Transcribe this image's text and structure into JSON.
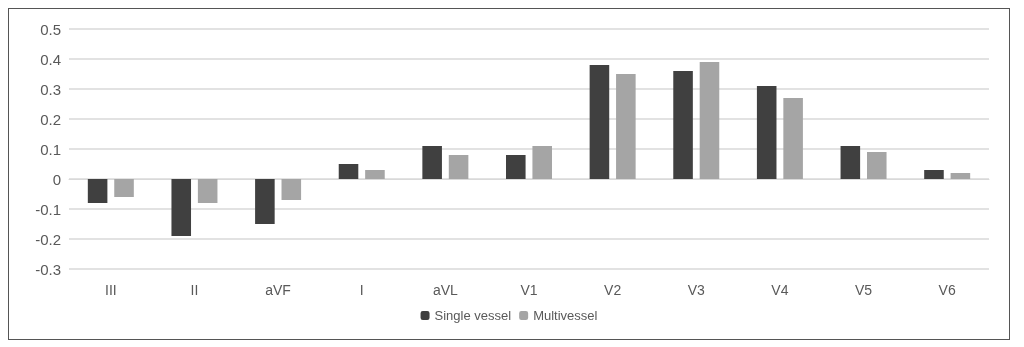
{
  "chart_data": {
    "type": "bar",
    "categories": [
      "III",
      "II",
      "aVF",
      "I",
      "aVL",
      "V1",
      "V2",
      "V3",
      "V4",
      "V5",
      "V6"
    ],
    "series": [
      {
        "name": "Single vessel",
        "color": "#404040",
        "values": [
          -0.08,
          -0.19,
          -0.15,
          0.05,
          0.11,
          0.08,
          0.38,
          0.36,
          0.31,
          0.11,
          0.03
        ]
      },
      {
        "name": "Multivessel",
        "color": "#a5a5a5",
        "values": [
          -0.06,
          -0.08,
          -0.07,
          0.03,
          0.08,
          0.11,
          0.35,
          0.39,
          0.27,
          0.09,
          0.02
        ]
      }
    ],
    "ylim": [
      -0.3,
      0.5
    ],
    "yticks": [
      -0.3,
      -0.2,
      -0.1,
      0,
      0.1,
      0.2,
      0.3,
      0.4,
      0.5
    ],
    "grid": "y",
    "legend": "bottom"
  }
}
